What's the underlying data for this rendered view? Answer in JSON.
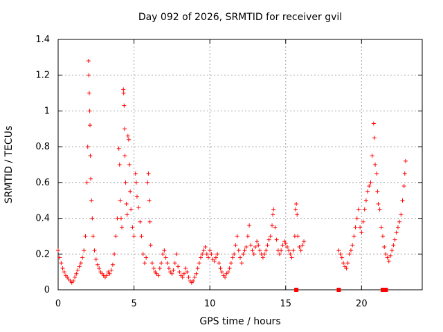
{
  "chart_data": {
    "type": "scatter",
    "title": "Day 092 of 2026, SRMTID for receiver gvil",
    "xlabel": "GPS time / hours",
    "ylabel": "SRMTID / TECUs",
    "xlim": [
      0,
      24
    ],
    "ylim": [
      0,
      1.4
    ],
    "xticks": [
      0,
      5,
      10,
      15,
      20
    ],
    "xtick_labels": [
      "0",
      "5",
      "10",
      "15",
      "20"
    ],
    "yticks": [
      0,
      0.2,
      0.4,
      0.6,
      0.8,
      1,
      1.2,
      1.4
    ],
    "ytick_labels": [
      "0",
      "0.2",
      "0.4",
      "0.6",
      "0.8",
      "1",
      "1.2",
      "1.4"
    ],
    "grid": true,
    "marker": "+",
    "color": "#ff0000",
    "series": [
      {
        "name": "SRMTID",
        "points": [
          [
            0.0,
            0.22
          ],
          [
            0.1,
            0.18
          ],
          [
            0.2,
            0.15
          ],
          [
            0.3,
            0.12
          ],
          [
            0.4,
            0.1
          ],
          [
            0.5,
            0.08
          ],
          [
            0.6,
            0.07
          ],
          [
            0.7,
            0.06
          ],
          [
            0.8,
            0.05
          ],
          [
            0.9,
            0.04
          ],
          [
            1.0,
            0.05
          ],
          [
            1.1,
            0.07
          ],
          [
            1.2,
            0.09
          ],
          [
            1.3,
            0.11
          ],
          [
            1.4,
            0.13
          ],
          [
            1.5,
            0.15
          ],
          [
            1.6,
            0.18
          ],
          [
            1.7,
            0.22
          ],
          [
            1.8,
            0.3
          ],
          [
            1.9,
            0.6
          ],
          [
            1.95,
            0.8
          ],
          [
            2.0,
            1.28
          ],
          [
            2.02,
            1.2
          ],
          [
            2.05,
            1.1
          ],
          [
            2.08,
            1.0
          ],
          [
            2.1,
            0.92
          ],
          [
            2.12,
            0.75
          ],
          [
            2.15,
            0.62
          ],
          [
            2.2,
            0.5
          ],
          [
            2.25,
            0.4
          ],
          [
            2.3,
            0.3
          ],
          [
            2.4,
            0.22
          ],
          [
            2.5,
            0.17
          ],
          [
            2.6,
            0.14
          ],
          [
            2.7,
            0.12
          ],
          [
            2.8,
            0.1
          ],
          [
            2.9,
            0.09
          ],
          [
            3.0,
            0.08
          ],
          [
            3.1,
            0.07
          ],
          [
            3.2,
            0.08
          ],
          [
            3.3,
            0.1
          ],
          [
            3.4,
            0.09
          ],
          [
            3.5,
            0.11
          ],
          [
            3.6,
            0.14
          ],
          [
            3.7,
            0.2
          ],
          [
            3.8,
            0.3
          ],
          [
            3.9,
            0.4
          ],
          [
            4.0,
            0.79
          ],
          [
            4.05,
            0.7
          ],
          [
            4.1,
            0.5
          ],
          [
            4.15,
            0.4
          ],
          [
            4.2,
            0.35
          ],
          [
            4.3,
            1.12
          ],
          [
            4.32,
            1.1
          ],
          [
            4.35,
            1.03
          ],
          [
            4.38,
            0.9
          ],
          [
            4.4,
            0.75
          ],
          [
            4.45,
            0.6
          ],
          [
            4.5,
            0.48
          ],
          [
            4.55,
            0.42
          ],
          [
            4.6,
            0.86
          ],
          [
            4.65,
            0.84
          ],
          [
            4.7,
            0.7
          ],
          [
            4.75,
            0.55
          ],
          [
            4.8,
            0.45
          ],
          [
            4.9,
            0.35
          ],
          [
            5.0,
            0.3
          ],
          [
            5.1,
            0.65
          ],
          [
            5.15,
            0.6
          ],
          [
            5.2,
            0.52
          ],
          [
            5.3,
            0.46
          ],
          [
            5.4,
            0.38
          ],
          [
            5.5,
            0.3
          ],
          [
            5.6,
            0.2
          ],
          [
            5.7,
            0.15
          ],
          [
            5.8,
            0.18
          ],
          [
            5.9,
            0.6
          ],
          [
            5.95,
            0.65
          ],
          [
            6.0,
            0.5
          ],
          [
            6.05,
            0.38
          ],
          [
            6.1,
            0.25
          ],
          [
            6.2,
            0.15
          ],
          [
            6.3,
            0.12
          ],
          [
            6.4,
            0.1
          ],
          [
            6.5,
            0.09
          ],
          [
            6.6,
            0.08
          ],
          [
            6.7,
            0.12
          ],
          [
            6.8,
            0.15
          ],
          [
            6.9,
            0.2
          ],
          [
            7.0,
            0.22
          ],
          [
            7.1,
            0.18
          ],
          [
            7.2,
            0.15
          ],
          [
            7.3,
            0.12
          ],
          [
            7.4,
            0.1
          ],
          [
            7.5,
            0.09
          ],
          [
            7.6,
            0.11
          ],
          [
            7.7,
            0.15
          ],
          [
            7.8,
            0.2
          ],
          [
            7.9,
            0.13
          ],
          [
            8.0,
            0.1
          ],
          [
            8.1,
            0.08
          ],
          [
            8.2,
            0.07
          ],
          [
            8.3,
            0.09
          ],
          [
            8.4,
            0.12
          ],
          [
            8.5,
            0.1
          ],
          [
            8.6,
            0.07
          ],
          [
            8.7,
            0.05
          ],
          [
            8.8,
            0.04
          ],
          [
            8.9,
            0.05
          ],
          [
            9.0,
            0.07
          ],
          [
            9.1,
            0.09
          ],
          [
            9.2,
            0.12
          ],
          [
            9.3,
            0.15
          ],
          [
            9.4,
            0.18
          ],
          [
            9.5,
            0.2
          ],
          [
            9.6,
            0.22
          ],
          [
            9.7,
            0.24
          ],
          [
            9.8,
            0.2
          ],
          [
            9.9,
            0.18
          ],
          [
            10.0,
            0.22
          ],
          [
            10.1,
            0.2
          ],
          [
            10.2,
            0.17
          ],
          [
            10.3,
            0.16
          ],
          [
            10.4,
            0.18
          ],
          [
            10.5,
            0.2
          ],
          [
            10.6,
            0.15
          ],
          [
            10.7,
            0.12
          ],
          [
            10.8,
            0.1
          ],
          [
            10.9,
            0.08
          ],
          [
            11.0,
            0.07
          ],
          [
            11.1,
            0.09
          ],
          [
            11.2,
            0.1
          ],
          [
            11.3,
            0.12
          ],
          [
            11.4,
            0.15
          ],
          [
            11.5,
            0.18
          ],
          [
            11.6,
            0.2
          ],
          [
            11.7,
            0.25
          ],
          [
            11.8,
            0.3
          ],
          [
            11.9,
            0.22
          ],
          [
            12.0,
            0.18
          ],
          [
            12.1,
            0.15
          ],
          [
            12.2,
            0.2
          ],
          [
            12.3,
            0.22
          ],
          [
            12.4,
            0.24
          ],
          [
            12.5,
            0.3
          ],
          [
            12.6,
            0.36
          ],
          [
            12.7,
            0.25
          ],
          [
            12.8,
            0.22
          ],
          [
            12.9,
            0.2
          ],
          [
            13.0,
            0.24
          ],
          [
            13.1,
            0.27
          ],
          [
            13.2,
            0.25
          ],
          [
            13.3,
            0.22
          ],
          [
            13.4,
            0.2
          ],
          [
            13.5,
            0.18
          ],
          [
            13.6,
            0.2
          ],
          [
            13.7,
            0.22
          ],
          [
            13.8,
            0.25
          ],
          [
            13.9,
            0.28
          ],
          [
            14.0,
            0.3
          ],
          [
            14.1,
            0.36
          ],
          [
            14.15,
            0.42
          ],
          [
            14.2,
            0.45
          ],
          [
            14.3,
            0.35
          ],
          [
            14.4,
            0.28
          ],
          [
            14.5,
            0.22
          ],
          [
            14.6,
            0.2
          ],
          [
            14.7,
            0.22
          ],
          [
            14.8,
            0.25
          ],
          [
            14.9,
            0.27
          ],
          [
            15.0,
            0.26
          ],
          [
            15.1,
            0.24
          ],
          [
            15.2,
            0.22
          ],
          [
            15.3,
            0.2
          ],
          [
            15.4,
            0.18
          ],
          [
            15.5,
            0.22
          ],
          [
            15.6,
            0.3
          ],
          [
            15.65,
            0.45
          ],
          [
            15.7,
            0.48
          ],
          [
            15.75,
            0.42
          ],
          [
            15.8,
            0.3
          ],
          [
            15.9,
            0.24
          ],
          [
            16.0,
            0.22
          ],
          [
            16.1,
            0.25
          ],
          [
            16.2,
            0.27
          ],
          [
            18.5,
            0.22
          ],
          [
            18.6,
            0.2
          ],
          [
            18.7,
            0.18
          ],
          [
            18.8,
            0.15
          ],
          [
            18.9,
            0.13
          ],
          [
            19.0,
            0.12
          ],
          [
            19.1,
            0.15
          ],
          [
            19.2,
            0.2
          ],
          [
            19.3,
            0.22
          ],
          [
            19.4,
            0.25
          ],
          [
            19.5,
            0.3
          ],
          [
            19.6,
            0.35
          ],
          [
            19.7,
            0.4
          ],
          [
            19.8,
            0.45
          ],
          [
            19.9,
            0.35
          ],
          [
            20.0,
            0.32
          ],
          [
            20.1,
            0.38
          ],
          [
            20.2,
            0.45
          ],
          [
            20.3,
            0.5
          ],
          [
            20.4,
            0.55
          ],
          [
            20.5,
            0.58
          ],
          [
            20.6,
            0.6
          ],
          [
            20.7,
            0.75
          ],
          [
            20.8,
            0.93
          ],
          [
            20.85,
            0.85
          ],
          [
            20.9,
            0.7
          ],
          [
            21.0,
            0.65
          ],
          [
            21.05,
            0.55
          ],
          [
            21.1,
            0.48
          ],
          [
            21.2,
            0.45
          ],
          [
            21.3,
            0.35
          ],
          [
            21.4,
            0.3
          ],
          [
            21.5,
            0.24
          ],
          [
            21.6,
            0.2
          ],
          [
            21.7,
            0.18
          ],
          [
            21.8,
            0.16
          ],
          [
            21.9,
            0.19
          ],
          [
            22.0,
            0.22
          ],
          [
            22.1,
            0.25
          ],
          [
            22.2,
            0.28
          ],
          [
            22.3,
            0.32
          ],
          [
            22.4,
            0.35
          ],
          [
            22.5,
            0.38
          ],
          [
            22.6,
            0.42
          ],
          [
            22.7,
            0.5
          ],
          [
            22.8,
            0.58
          ],
          [
            22.85,
            0.65
          ],
          [
            22.9,
            0.72
          ]
        ]
      }
    ],
    "zero_markers": [
      15.7,
      18.5,
      21.4,
      21.6
    ]
  }
}
